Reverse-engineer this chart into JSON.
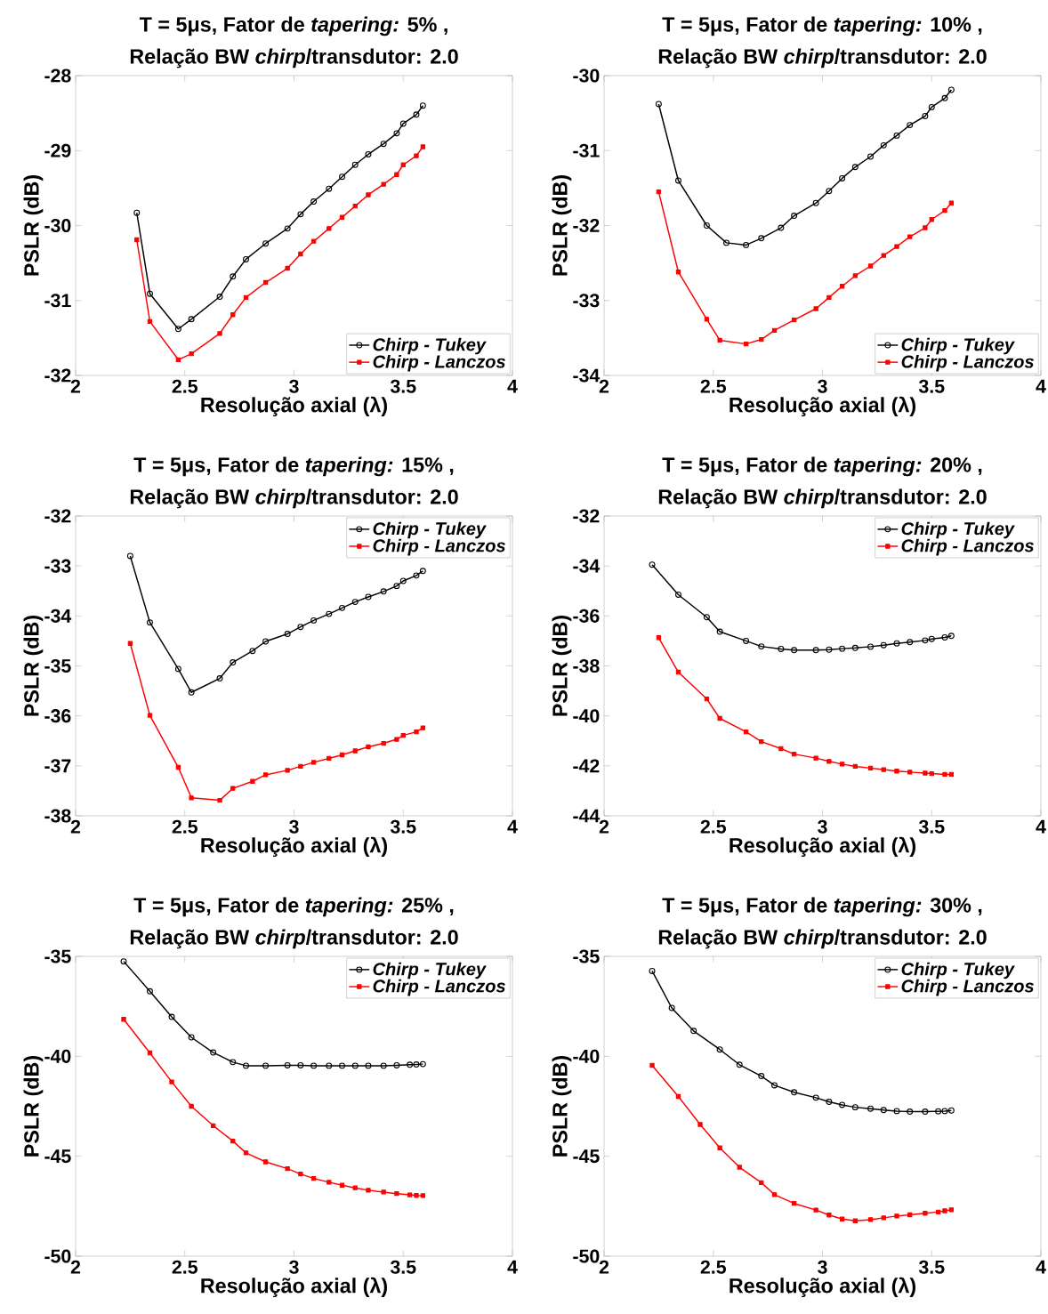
{
  "chart_data": [
    {
      "type": "line",
      "title": "T = 5μs, Fator de *tapering:* 5% ,",
      "subtitle": "Relação BW *chirp*/transdutor: 2.0",
      "xlabel": "Resolução axial (λ)",
      "ylabel": "PSLR (dB)",
      "xlim": [
        2,
        4
      ],
      "xticks": [
        2,
        2.5,
        3,
        3.5,
        4
      ],
      "ylim": [
        -32,
        -28
      ],
      "yticks": [
        -32,
        -31,
        -30,
        -29,
        -28
      ],
      "legend": "bottom right",
      "series": [
        {
          "name": "Chirp - Tukey",
          "color": "#000000",
          "marker": "circle",
          "x": [
            2.28,
            2.34,
            2.47,
            2.53,
            2.66,
            2.72,
            2.78,
            2.87,
            2.97,
            3.03,
            3.09,
            3.16,
            3.22,
            3.28,
            3.34,
            3.41,
            3.47,
            3.5,
            3.56,
            3.59
          ],
          "values": [
            -29.83,
            -30.91,
            -31.38,
            -31.25,
            -30.95,
            -30.68,
            -30.45,
            -30.24,
            -30.04,
            -29.85,
            -29.68,
            -29.51,
            -29.35,
            -29.19,
            -29.05,
            -28.91,
            -28.77,
            -28.64,
            -28.52,
            -28.4
          ]
        },
        {
          "name": "Chirp - Lanczos",
          "color": "#ff0000",
          "marker": "square",
          "x": [
            2.28,
            2.34,
            2.47,
            2.53,
            2.66,
            2.72,
            2.78,
            2.87,
            2.97,
            3.03,
            3.09,
            3.16,
            3.22,
            3.28,
            3.34,
            3.41,
            3.47,
            3.5,
            3.56,
            3.59
          ],
          "values": [
            -30.19,
            -31.28,
            -31.79,
            -31.71,
            -31.44,
            -31.19,
            -30.96,
            -30.76,
            -30.57,
            -30.38,
            -30.21,
            -30.04,
            -29.89,
            -29.74,
            -29.59,
            -29.45,
            -29.32,
            -29.19,
            -29.07,
            -28.95
          ]
        }
      ]
    },
    {
      "type": "line",
      "title": "T = 5μs, Fator de *tapering:* 10% ,",
      "subtitle": "Relação BW *chirp*/transdutor: 2.0",
      "xlabel": "Resolução axial (λ)",
      "ylabel": "PSLR (dB)",
      "xlim": [
        2,
        4
      ],
      "xticks": [
        2,
        2.5,
        3,
        3.5,
        4
      ],
      "ylim": [
        -34,
        -30
      ],
      "yticks": [
        -34,
        -33,
        -32,
        -31,
        -30
      ],
      "legend": "bottom right",
      "series": [
        {
          "name": "Chirp - Tukey",
          "color": "#000000",
          "marker": "circle",
          "x": [
            2.25,
            2.34,
            2.47,
            2.56,
            2.65,
            2.72,
            2.81,
            2.87,
            2.97,
            3.03,
            3.09,
            3.15,
            3.22,
            3.28,
            3.34,
            3.4,
            3.47,
            3.5,
            3.56,
            3.59
          ],
          "values": [
            -30.38,
            -31.4,
            -32.0,
            -32.23,
            -32.26,
            -32.17,
            -32.03,
            -31.87,
            -31.7,
            -31.54,
            -31.37,
            -31.22,
            -31.08,
            -30.93,
            -30.8,
            -30.66,
            -30.54,
            -30.42,
            -30.3,
            -30.19
          ]
        },
        {
          "name": "Chirp - Lanczos",
          "color": "#ff0000",
          "marker": "square",
          "x": [
            2.25,
            2.34,
            2.47,
            2.53,
            2.65,
            2.72,
            2.78,
            2.87,
            2.97,
            3.03,
            3.09,
            3.15,
            3.22,
            3.28,
            3.34,
            3.4,
            3.47,
            3.5,
            3.56,
            3.59
          ],
          "values": [
            -31.55,
            -32.62,
            -33.25,
            -33.53,
            -33.58,
            -33.52,
            -33.4,
            -33.26,
            -33.11,
            -32.96,
            -32.81,
            -32.67,
            -32.54,
            -32.4,
            -32.28,
            -32.15,
            -32.03,
            -31.92,
            -31.8,
            -31.7
          ]
        }
      ]
    },
    {
      "type": "line",
      "title": "T = 5μs, Fator de *tapering:* 15% ,",
      "subtitle": "Relação BW *chirp*/transdutor: 2.0",
      "xlabel": "Resolução axial (λ)",
      "ylabel": "PSLR (dB)",
      "xlim": [
        2,
        4
      ],
      "xticks": [
        2,
        2.5,
        3,
        3.5,
        4
      ],
      "ylim": [
        -38,
        -32
      ],
      "yticks": [
        -38,
        -37,
        -36,
        -35,
        -34,
        -33,
        -32
      ],
      "legend": "top right",
      "series": [
        {
          "name": "Chirp - Tukey",
          "color": "#000000",
          "marker": "circle",
          "x": [
            2.25,
            2.34,
            2.47,
            2.53,
            2.66,
            2.72,
            2.81,
            2.87,
            2.97,
            3.03,
            3.09,
            3.16,
            3.22,
            3.28,
            3.34,
            3.41,
            3.47,
            3.5,
            3.56,
            3.59
          ],
          "values": [
            -32.8,
            -34.13,
            -35.06,
            -35.53,
            -35.25,
            -34.93,
            -34.7,
            -34.51,
            -34.36,
            -34.22,
            -34.09,
            -33.96,
            -33.84,
            -33.72,
            -33.62,
            -33.51,
            -33.4,
            -33.3,
            -33.19,
            -33.1
          ]
        },
        {
          "name": "Chirp - Lanczos",
          "color": "#ff0000",
          "marker": "square",
          "x": [
            2.25,
            2.34,
            2.47,
            2.53,
            2.66,
            2.72,
            2.81,
            2.87,
            2.97,
            3.03,
            3.09,
            3.16,
            3.22,
            3.28,
            3.34,
            3.41,
            3.47,
            3.5,
            3.56,
            3.59
          ],
          "values": [
            -34.55,
            -35.99,
            -37.03,
            -37.64,
            -37.69,
            -37.45,
            -37.31,
            -37.18,
            -37.09,
            -37.01,
            -36.93,
            -36.85,
            -36.78,
            -36.7,
            -36.62,
            -36.55,
            -36.47,
            -36.39,
            -36.32,
            -36.24
          ]
        }
      ]
    },
    {
      "type": "line",
      "title": "T = 5μs, Fator de *tapering:* 20% ,",
      "subtitle": "Relação BW *chirp*/transdutor: 2.0",
      "xlabel": "Resolução axial (λ)",
      "ylabel": "PSLR (dB)",
      "xlim": [
        2,
        4
      ],
      "xticks": [
        2,
        2.5,
        3,
        3.5,
        4
      ],
      "ylim": [
        -44,
        -32
      ],
      "yticks": [
        -44,
        -42,
        -40,
        -38,
        -36,
        -34,
        -32
      ],
      "legend": "top right",
      "series": [
        {
          "name": "Chirp - Tukey",
          "color": "#000000",
          "marker": "circle",
          "x": [
            2.22,
            2.34,
            2.47,
            2.53,
            2.65,
            2.72,
            2.81,
            2.87,
            2.97,
            3.03,
            3.09,
            3.15,
            3.22,
            3.28,
            3.34,
            3.4,
            3.47,
            3.5,
            3.56,
            3.59
          ],
          "values": [
            -33.95,
            -35.15,
            -36.05,
            -36.63,
            -37.0,
            -37.22,
            -37.32,
            -37.37,
            -37.37,
            -37.35,
            -37.31,
            -37.28,
            -37.23,
            -37.17,
            -37.1,
            -37.05,
            -36.98,
            -36.92,
            -36.86,
            -36.8
          ]
        },
        {
          "name": "Chirp - Lanczos",
          "color": "#ff0000",
          "marker": "square",
          "x": [
            2.25,
            2.34,
            2.47,
            2.53,
            2.65,
            2.72,
            2.81,
            2.87,
            2.97,
            3.03,
            3.09,
            3.15,
            3.22,
            3.28,
            3.34,
            3.4,
            3.47,
            3.5,
            3.56,
            3.59
          ],
          "values": [
            -36.87,
            -38.25,
            -39.32,
            -40.1,
            -40.64,
            -41.03,
            -41.31,
            -41.53,
            -41.69,
            -41.82,
            -41.93,
            -42.02,
            -42.09,
            -42.15,
            -42.21,
            -42.25,
            -42.29,
            -42.31,
            -42.34,
            -42.34
          ]
        }
      ]
    },
    {
      "type": "line",
      "title": "T = 5μs, Fator de *tapering:* 25% ,",
      "subtitle": "Relação BW *chirp*/transdutor: 2.0",
      "xlabel": "Resolução axial (λ)",
      "ylabel": "PSLR (dB)",
      "xlim": [
        2,
        4
      ],
      "xticks": [
        2,
        2.5,
        3,
        3.5,
        4
      ],
      "ylim": [
        -50,
        -35
      ],
      "yticks": [
        -50,
        -45,
        -40,
        -35
      ],
      "legend": "top right",
      "series": [
        {
          "name": "Chirp - Tukey",
          "color": "#000000",
          "marker": "circle",
          "x": [
            2.22,
            2.34,
            2.44,
            2.53,
            2.63,
            2.72,
            2.78,
            2.87,
            2.97,
            3.03,
            3.09,
            3.16,
            3.22,
            3.28,
            3.34,
            3.41,
            3.47,
            3.53,
            3.56,
            3.59
          ],
          "values": [
            -35.25,
            -36.75,
            -38.03,
            -39.05,
            -39.81,
            -40.29,
            -40.47,
            -40.47,
            -40.45,
            -40.45,
            -40.47,
            -40.47,
            -40.47,
            -40.47,
            -40.47,
            -40.47,
            -40.45,
            -40.42,
            -40.41,
            -40.39
          ]
        },
        {
          "name": "Chirp - Lanczos",
          "color": "#ff0000",
          "marker": "square",
          "x": [
            2.22,
            2.34,
            2.44,
            2.53,
            2.63,
            2.72,
            2.78,
            2.87,
            2.97,
            3.03,
            3.09,
            3.16,
            3.22,
            3.28,
            3.34,
            3.41,
            3.47,
            3.53,
            3.56,
            3.59
          ],
          "values": [
            -38.15,
            -39.83,
            -41.28,
            -42.5,
            -43.47,
            -44.24,
            -44.83,
            -45.28,
            -45.62,
            -45.89,
            -46.11,
            -46.3,
            -46.45,
            -46.58,
            -46.7,
            -46.79,
            -46.87,
            -46.93,
            -46.96,
            -46.97
          ]
        }
      ]
    },
    {
      "type": "line",
      "title": "T = 5μs, Fator de *tapering:* 30% ,",
      "subtitle": "Relação BW *chirp*/transdutor: 2.0",
      "xlabel": "Resolução axial (λ)",
      "ylabel": "PSLR (dB)",
      "xlim": [
        2,
        4
      ],
      "xticks": [
        2,
        2.5,
        3,
        3.5,
        4
      ],
      "ylim": [
        -50,
        -35
      ],
      "yticks": [
        -50,
        -45,
        -40,
        -35
      ],
      "legend": "top right",
      "series": [
        {
          "name": "Chirp - Tukey",
          "color": "#000000",
          "marker": "circle",
          "x": [
            2.22,
            2.31,
            2.41,
            2.53,
            2.62,
            2.72,
            2.78,
            2.87,
            2.97,
            3.03,
            3.09,
            3.15,
            3.22,
            3.28,
            3.34,
            3.4,
            3.47,
            3.53,
            3.56,
            3.59
          ],
          "values": [
            -35.73,
            -37.58,
            -38.73,
            -39.66,
            -40.42,
            -40.99,
            -41.45,
            -41.8,
            -42.07,
            -42.28,
            -42.43,
            -42.55,
            -42.62,
            -42.69,
            -42.74,
            -42.77,
            -42.77,
            -42.75,
            -42.74,
            -42.71
          ]
        },
        {
          "name": "Chirp - Lanczos",
          "color": "#ff0000",
          "marker": "square",
          "x": [
            2.22,
            2.34,
            2.44,
            2.53,
            2.62,
            2.72,
            2.78,
            2.87,
            2.97,
            3.03,
            3.09,
            3.15,
            3.22,
            3.28,
            3.34,
            3.4,
            3.47,
            3.53,
            3.56,
            3.59
          ],
          "values": [
            -40.45,
            -42.01,
            -43.41,
            -44.58,
            -45.55,
            -46.32,
            -46.92,
            -47.36,
            -47.69,
            -47.94,
            -48.14,
            -48.23,
            -48.17,
            -48.08,
            -47.99,
            -47.93,
            -47.85,
            -47.79,
            -47.73,
            -47.68
          ]
        }
      ]
    }
  ]
}
